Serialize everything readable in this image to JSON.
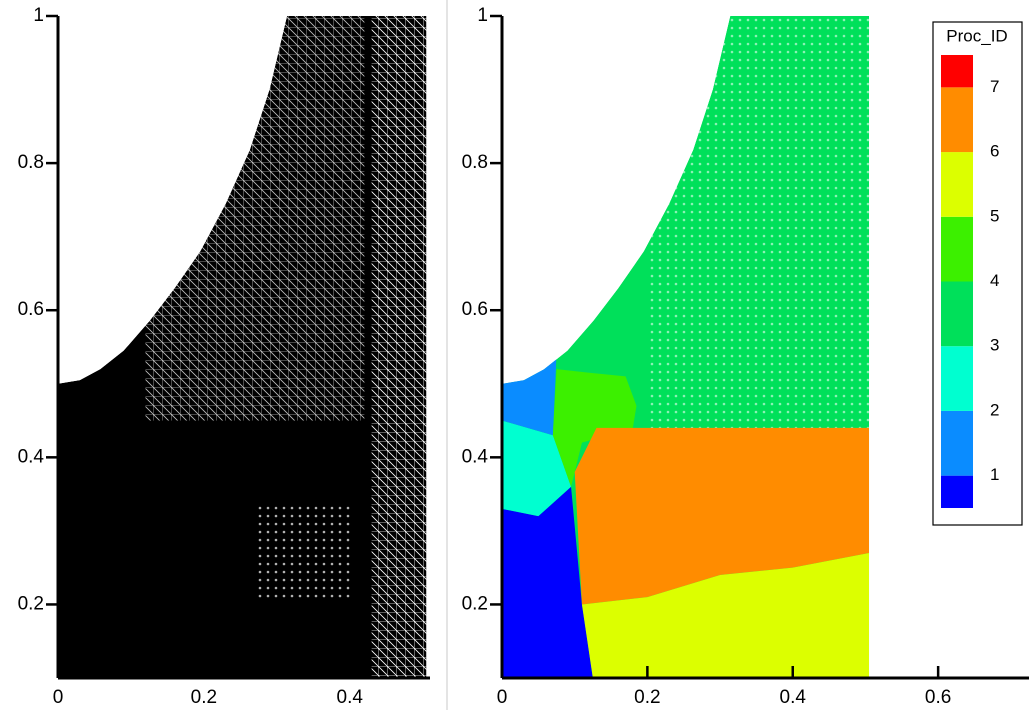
{
  "chart_data": [
    {
      "type": "mesh",
      "color": "#000000",
      "xlim": [
        0,
        0.51
      ],
      "ylim": [
        0.1,
        1
      ],
      "xticks": [
        0,
        0.2,
        0.4
      ],
      "yticks": [
        0.2,
        0.4,
        0.6,
        0.8,
        1
      ],
      "boundary": [
        [
          0,
          0.1
        ],
        [
          0,
          0.5
        ],
        [
          0.03,
          0.505
        ],
        [
          0.058,
          0.52
        ],
        [
          0.09,
          0.545
        ],
        [
          0.126,
          0.586
        ],
        [
          0.16,
          0.63
        ],
        [
          0.195,
          0.68
        ],
        [
          0.23,
          0.745
        ],
        [
          0.263,
          0.818
        ],
        [
          0.29,
          0.9
        ],
        [
          0.314,
          1
        ],
        [
          0.505,
          1
        ],
        [
          0.505,
          0.1
        ]
      ]
    },
    {
      "type": "partition",
      "xlim": [
        0,
        0.725
      ],
      "ylim": [
        0.1,
        1
      ],
      "xticks": [
        0,
        0.2,
        0.4,
        0.6
      ],
      "yticks": [
        0.2,
        0.4,
        0.6,
        0.8,
        1
      ],
      "boundary": [
        [
          0,
          0.1
        ],
        [
          0,
          0.5
        ],
        [
          0.03,
          0.505
        ],
        [
          0.058,
          0.52
        ],
        [
          0.09,
          0.545
        ],
        [
          0.126,
          0.586
        ],
        [
          0.16,
          0.63
        ],
        [
          0.195,
          0.68
        ],
        [
          0.23,
          0.745
        ],
        [
          0.263,
          0.818
        ],
        [
          0.29,
          0.9
        ],
        [
          0.314,
          1
        ],
        [
          0.505,
          1
        ],
        [
          0.505,
          0.1
        ]
      ],
      "background_proc": 3,
      "regions": [
        {
          "proc": 0,
          "points": [
            [
              0,
              0.33
            ],
            [
              0.05,
              0.32
            ],
            [
              0.095,
              0.36
            ],
            [
              0.11,
              0.2
            ],
            [
              0.125,
              0.1
            ],
            [
              0,
              0.1
            ]
          ]
        },
        {
          "proc": 2,
          "points": [
            [
              0,
              0.45
            ],
            [
              0.07,
              0.43
            ],
            [
              0.095,
              0.36
            ],
            [
              0.05,
              0.32
            ],
            [
              0,
              0.33
            ]
          ]
        },
        {
          "proc": 1,
          "points": [
            [
              0,
              0.5
            ],
            [
              0.03,
              0.505
            ],
            [
              0.058,
              0.52
            ],
            [
              0.075,
              0.54
            ],
            [
              0.07,
              0.43
            ],
            [
              0,
              0.45
            ]
          ]
        },
        {
          "proc": 4,
          "points": [
            [
              0.075,
              0.52
            ],
            [
              0.12,
              0.515
            ],
            [
              0.17,
              0.51
            ],
            [
              0.185,
              0.47
            ],
            [
              0.18,
              0.44
            ],
            [
              0.11,
              0.42
            ],
            [
              0.095,
              0.36
            ],
            [
              0.07,
              0.43
            ]
          ]
        },
        {
          "proc": 6,
          "points": [
            [
              0.1,
              0.38
            ],
            [
              0.13,
              0.44
            ],
            [
              0.505,
              0.44
            ],
            [
              0.505,
              0.27
            ],
            [
              0.4,
              0.25
            ],
            [
              0.3,
              0.24
            ],
            [
              0.2,
              0.21
            ],
            [
              0.11,
              0.2
            ]
          ]
        },
        {
          "proc": 5,
          "points": [
            [
              0.11,
              0.2
            ],
            [
              0.2,
              0.21
            ],
            [
              0.3,
              0.24
            ],
            [
              0.4,
              0.25
            ],
            [
              0.505,
              0.27
            ],
            [
              0.505,
              0.1
            ],
            [
              0.125,
              0.1
            ]
          ]
        }
      ],
      "legend": {
        "title": "Proc_ID",
        "labels": [
          1,
          2,
          3,
          4,
          5,
          6,
          7
        ],
        "colors": [
          "#0000ff",
          "#0a8cff",
          "#00ffd0",
          "#00e05a",
          "#3cf000",
          "#dcff00",
          "#ff8c00",
          "#ff0000"
        ]
      }
    }
  ]
}
